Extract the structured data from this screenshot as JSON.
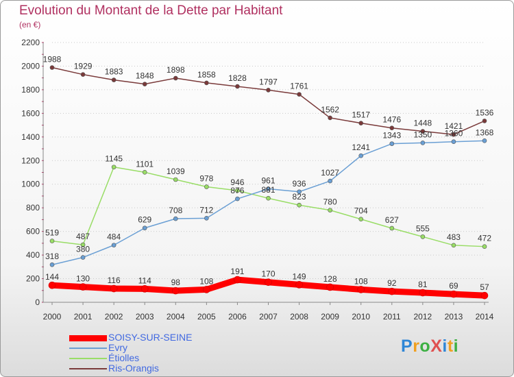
{
  "title": "Evolution du Montant de la Dette par Habitant",
  "subtitle": "(en €)",
  "logo": {
    "text": "ProXiti",
    "colors": [
      "#2e86d6",
      "#f0a020",
      "#3cb043",
      "#e05050",
      "#2e86d6",
      "#f0a020",
      "#3cb043"
    ]
  },
  "chart_data": {
    "type": "line",
    "x": [
      2000,
      2001,
      2002,
      2003,
      2004,
      2005,
      2006,
      2007,
      2008,
      2009,
      2010,
      2011,
      2012,
      2013,
      2014
    ],
    "ylim": [
      0,
      2200
    ],
    "yticks": [
      0,
      200,
      400,
      600,
      800,
      1000,
      1200,
      1400,
      1600,
      1800,
      2000,
      2200
    ],
    "grid": "dotted-horizontal",
    "legend_position": "bottom-left",
    "series": [
      {
        "name": "SOISY-SUR-SEINE",
        "color": "#ff0000",
        "labels": [
          "144",
          "130",
          "116",
          "114",
          "98",
          "108",
          "191",
          "170",
          "149",
          "128",
          "108",
          "92",
          "81",
          "69",
          "57"
        ],
        "values": [
          144,
          130,
          116,
          114,
          98,
          108,
          191,
          170,
          149,
          128,
          108,
          92,
          81,
          69,
          57
        ]
      },
      {
        "name": "Evry",
        "color": "#6a9fd4",
        "labels": [
          "318",
          "380",
          "484",
          "629",
          "708",
          "712",
          "876",
          "961",
          "936",
          "1027",
          "1241",
          "1343",
          "1350",
          "1360",
          "1368"
        ],
        "values": [
          318,
          380,
          484,
          629,
          708,
          712,
          876,
          961,
          936,
          1027,
          1241,
          1343,
          1350,
          1360,
          1368
        ]
      },
      {
        "name": "Étiolles",
        "color": "#99dd66",
        "labels": [
          "519",
          "487",
          "1145",
          "1101",
          "1039",
          "978",
          "946",
          "881",
          "823",
          "780",
          "704",
          "627",
          "555",
          "483",
          "472"
        ],
        "values": [
          519,
          487,
          1145,
          1101,
          1039,
          978,
          946,
          881,
          823,
          780,
          704,
          627,
          555,
          483,
          472
        ]
      },
      {
        "name": "Ris-Orangis",
        "color": "#7a3a3a",
        "labels": [
          "1988",
          "1929",
          "1883",
          "1848",
          "1898",
          "1858",
          "1828",
          "1797",
          "1761",
          "1562",
          "1517",
          "1476",
          "1448",
          "1421",
          "1536"
        ],
        "values": [
          1988,
          1929,
          1883,
          1848,
          1898,
          1858,
          1828,
          1797,
          1761,
          1562,
          1517,
          1476,
          1448,
          1421,
          1536
        ]
      }
    ]
  }
}
